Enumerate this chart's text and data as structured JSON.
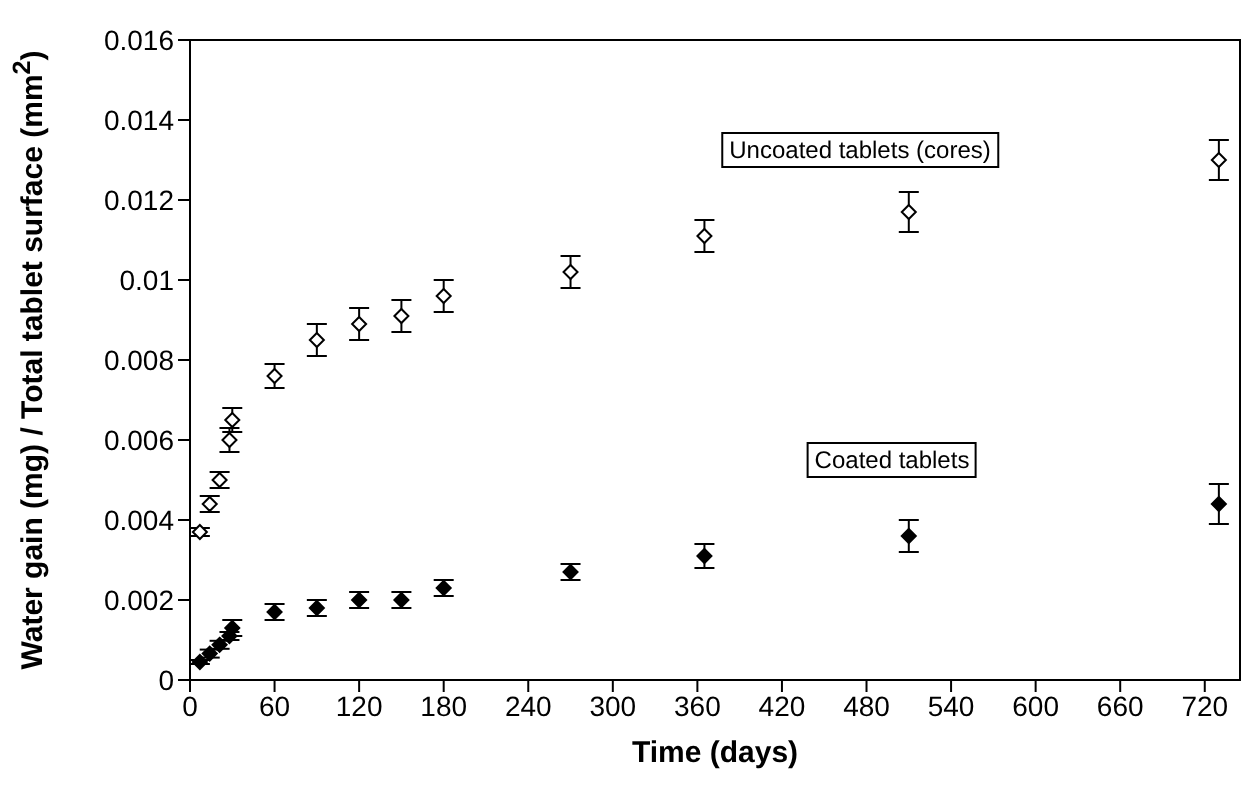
{
  "chart_data": {
    "type": "scatter",
    "xlabel": "Time (days)",
    "ylabel": "Water gain (mg) / Total tablet surface (mm$^{2}$)",
    "x": [
      7,
      14,
      21,
      28,
      30,
      60,
      90,
      120,
      150,
      180,
      270,
      365,
      510,
      730
    ],
    "xlim": [
      0,
      745
    ],
    "xticks": [
      0,
      60,
      120,
      180,
      240,
      300,
      360,
      420,
      480,
      540,
      600,
      660,
      720
    ],
    "ylim": [
      0,
      0.016
    ],
    "yticks": [
      0,
      0.002,
      0.004,
      0.006,
      0.008,
      0.01,
      0.012,
      0.014,
      0.016
    ],
    "marker": "diamond",
    "grid": false,
    "legend": false,
    "series": [
      {
        "color": "#ffffff",
        "values": [
          0.0037,
          0.0044,
          0.005,
          0.006,
          0.0065,
          0.0076,
          0.0085,
          0.0089,
          0.0091,
          0.0096,
          0.0102,
          0.0111,
          0.0117,
          0.013
        ],
        "errors": [
          0.0001,
          0.0002,
          0.0002,
          0.0003,
          0.0003,
          0.0003,
          0.0004,
          0.0004,
          0.0004,
          0.0004,
          0.0004,
          0.0004,
          0.0005,
          0.0005
        ]
      },
      {
        "color": "#000000",
        "values": [
          0.00045,
          0.00066,
          0.00088,
          0.0011,
          0.0013,
          0.0017,
          0.0018,
          0.002,
          0.002,
          0.0023,
          0.0027,
          0.0031,
          0.0036,
          0.0044
        ],
        "errors": [
          5e-05,
          0.0001,
          0.0001,
          0.0001,
          0.0002,
          0.0002,
          0.0002,
          0.0002,
          0.0002,
          0.0002,
          0.0002,
          0.0003,
          0.0004,
          0.0005
        ]
      }
    ],
    "annotations": [
      "Uncoated tablets (cores)",
      "Coated tablets"
    ]
  }
}
